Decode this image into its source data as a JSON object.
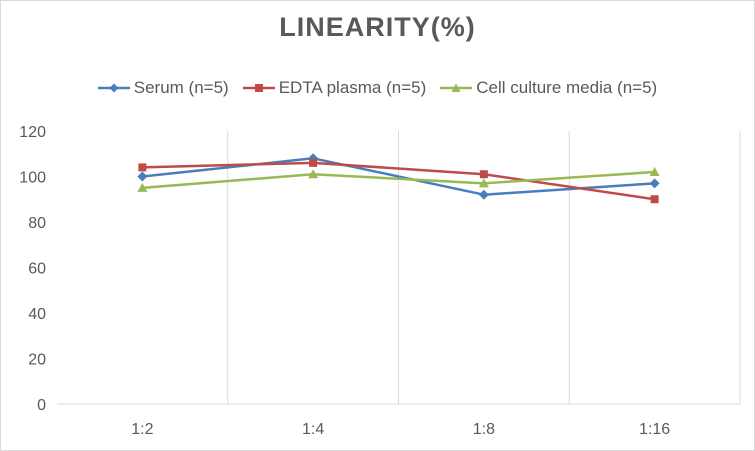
{
  "chart_data": {
    "type": "line",
    "title": "LINEARITY(%)",
    "xlabel": "",
    "ylabel": "",
    "categories": [
      "1:2",
      "1:4",
      "1:8",
      "1:16"
    ],
    "ylim": [
      0,
      120
    ],
    "yticks": [
      0,
      20,
      40,
      60,
      80,
      100,
      120
    ],
    "grid": "vertical",
    "legend_position": "top",
    "series": [
      {
        "name": "Serum (n=5)",
        "values": [
          100,
          108,
          92,
          97
        ],
        "color": "#4a7ebb",
        "marker": "diamond"
      },
      {
        "name": "EDTA plasma (n=5)",
        "values": [
          104,
          106,
          101,
          90
        ],
        "color": "#be4b48",
        "marker": "square"
      },
      {
        "name": "Cell culture media (n=5)",
        "values": [
          95,
          101,
          97,
          102
        ],
        "color": "#98b954",
        "marker": "triangle"
      }
    ]
  }
}
